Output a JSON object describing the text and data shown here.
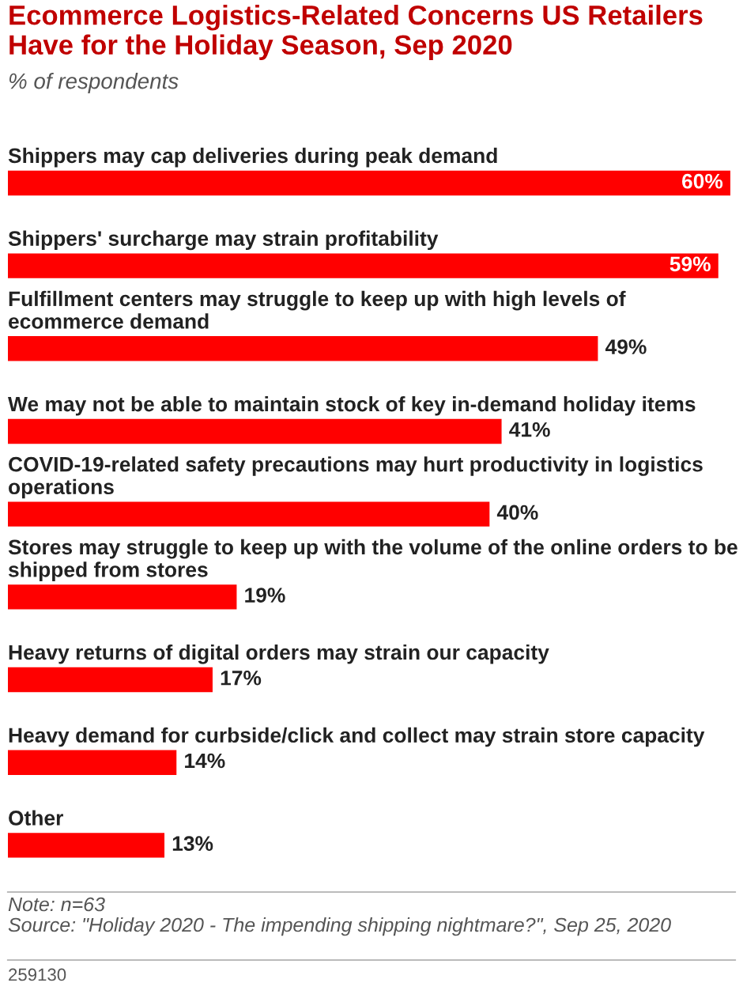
{
  "chart_data": {
    "type": "bar",
    "orientation": "horizontal",
    "title": "Ecommerce Logistics-Related Concerns US Retailers Have for the Holiday Season, Sep 2020",
    "subtitle": "% of respondents",
    "categories": [
      "Shippers may cap deliveries during peak demand",
      "Shippers' surcharge may strain profitability",
      "Fulfillment centers may struggle to keep up with high levels of ecommerce demand",
      "We may not be able to maintain stock of key in-demand holiday items",
      "COVID-19-related safety precautions may hurt productivity in logistics operations",
      "Stores may struggle to keep up with the volume of the online orders to be shipped from stores",
      "Heavy returns of digital orders may strain our capacity",
      "Heavy demand for curbside/click and collect may strain store capacity",
      "Other"
    ],
    "values": [
      60,
      59,
      49,
      41,
      40,
      19,
      17,
      14,
      13
    ],
    "value_labels": [
      "60%",
      "59%",
      "49%",
      "41%",
      "40%",
      "19%",
      "17%",
      "14%",
      "13%"
    ],
    "color": "#ff0000",
    "annotations": [
      "Note: n=63",
      "Source: \"Holiday 2020 - The impending shipping nightmare?\", Sep 25, 2020",
      "259130"
    ]
  }
}
